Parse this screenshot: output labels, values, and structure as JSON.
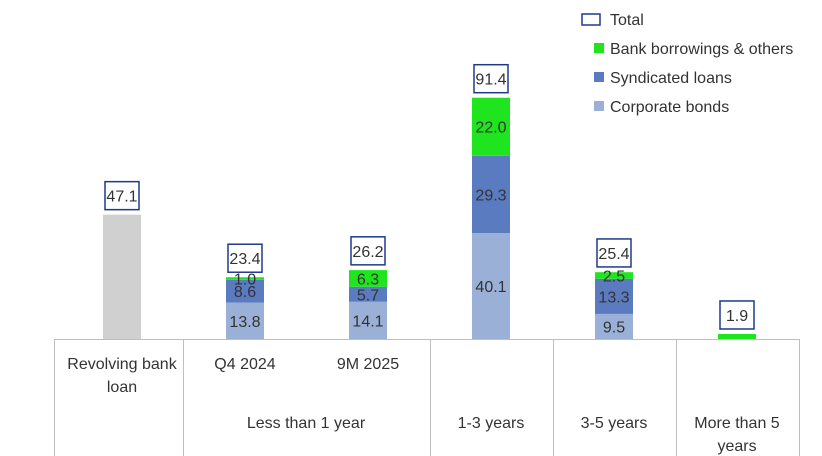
{
  "chart_data": {
    "type": "bar",
    "stacked": true,
    "title": "",
    "xlabel": "",
    "ylabel": "",
    "ylim": [
      0,
      100
    ],
    "categories": [
      "Revolving bank loan",
      "Q4 2024",
      "9M 2025",
      "1-3 years",
      "3-5 years",
      "More than 5 years"
    ],
    "groups": [
      {
        "label": "Less than 1 year",
        "members": [
          "Q4 2024",
          "9M 2025"
        ]
      }
    ],
    "series": [
      {
        "name": "Corporate bonds",
        "color": "#9bb0d6",
        "values": [
          null,
          13.8,
          14.1,
          40.1,
          9.5,
          null
        ]
      },
      {
        "name": "Syndicated loans",
        "color": "#5b7bc0",
        "values": [
          null,
          8.6,
          5.7,
          29.3,
          13.3,
          null
        ]
      },
      {
        "name": "Bank borrowings & others",
        "color": "#1ee51e",
        "values": [
          null,
          1.0,
          6.3,
          22.0,
          2.5,
          1.9
        ]
      },
      {
        "name": "Revolving bank loan",
        "color": "#d0d0d0",
        "values": [
          47.1,
          null,
          null,
          null,
          null,
          null
        ],
        "in_legend": false
      }
    ],
    "totals": {
      "name": "Total",
      "values": [
        47.1,
        23.4,
        26.2,
        91.4,
        25.4,
        1.9
      ],
      "labels": [
        "47.1",
        "23.4",
        "26.2",
        "91.4",
        "25.4",
        "1.9"
      ]
    },
    "segment_labels": {
      "Corporate bonds": [
        "",
        "13.8",
        "14.1",
        "40.1",
        "9.5",
        ""
      ],
      "Syndicated loans": [
        "",
        "8.6",
        "5.7",
        "29.3",
        "13.3",
        ""
      ],
      "Bank borrowings & others": [
        "",
        "1.0",
        "6.3",
        "22.0",
        "2.5",
        ""
      ]
    },
    "axis_labels": {
      "row1": [
        "Revolving bank\nloan",
        "Q4 2024",
        "9M 2025",
        "",
        "",
        ""
      ],
      "row2": [
        "",
        "Less than 1 year",
        "",
        "1-3 years",
        "3-5 years",
        "More than 5\nyears"
      ]
    },
    "legend": {
      "position": "top-right",
      "entries": [
        "Total",
        "Bank borrowings & others",
        "Syndicated loans",
        "Corporate bonds"
      ]
    },
    "total_box_color": "#1f3a8a"
  }
}
